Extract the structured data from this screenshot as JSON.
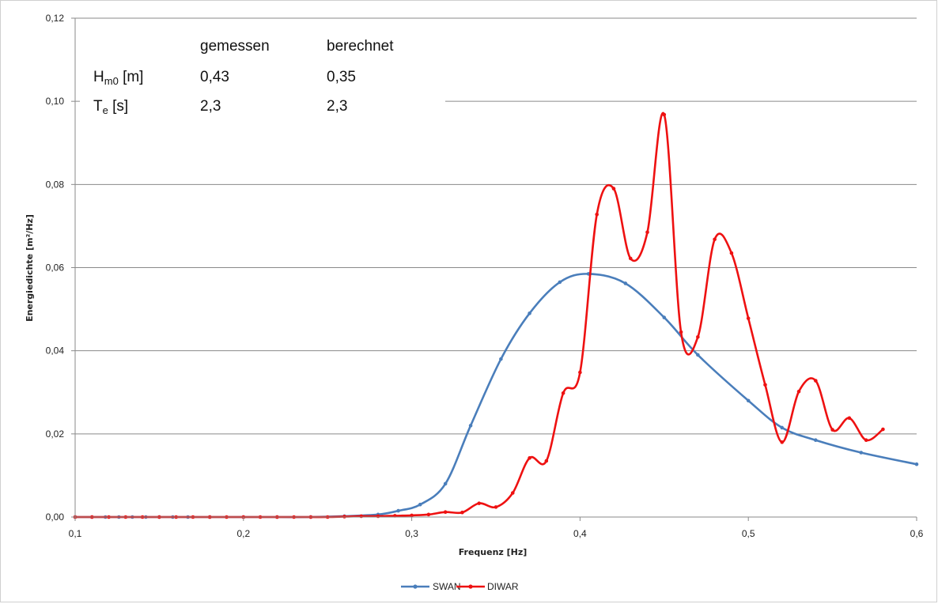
{
  "chart_data": {
    "type": "line",
    "title": "",
    "xlabel": "Frequenz [Hz]",
    "ylabel": "Energiedichte [m²/Hz]",
    "xlim": [
      0.1,
      0.6
    ],
    "ylim": [
      0,
      0.12
    ],
    "x_ticks": [
      "0,1",
      "0,2",
      "0,3",
      "0,4",
      "0,5",
      "0,6"
    ],
    "y_ticks": [
      "0,00",
      "0,02",
      "0,04",
      "0,06",
      "0,08",
      "0,10",
      "0,12"
    ],
    "grid": "horizontal",
    "legend_position": "bottom",
    "series": [
      {
        "name": "SWAN",
        "color": "#4a7ebb",
        "x": [
          0.1,
          0.11,
          0.118,
          0.126,
          0.134,
          0.142,
          0.15,
          0.158,
          0.167,
          0.18,
          0.2,
          0.22,
          0.24,
          0.26,
          0.28,
          0.292,
          0.305,
          0.32,
          0.335,
          0.353,
          0.37,
          0.388,
          0.405,
          0.427,
          0.45,
          0.47,
          0.5,
          0.52,
          0.54,
          0.567,
          0.6
        ],
        "y": [
          0,
          0,
          0,
          0,
          0,
          0,
          0,
          0,
          0,
          0,
          0,
          0,
          0,
          0.0002,
          0.0006,
          0.0015,
          0.003,
          0.008,
          0.022,
          0.038,
          0.049,
          0.0565,
          0.0585,
          0.0562,
          0.048,
          0.039,
          0.028,
          0.0215,
          0.0185,
          0.0155,
          0.0127
        ]
      },
      {
        "name": "DIWAR",
        "color": "#ee1111",
        "x": [
          0.1,
          0.11,
          0.12,
          0.13,
          0.14,
          0.15,
          0.16,
          0.17,
          0.18,
          0.19,
          0.2,
          0.21,
          0.22,
          0.23,
          0.24,
          0.25,
          0.26,
          0.27,
          0.28,
          0.29,
          0.3,
          0.31,
          0.32,
          0.33,
          0.34,
          0.35,
          0.36,
          0.37,
          0.38,
          0.39,
          0.4,
          0.41,
          0.42,
          0.43,
          0.44,
          0.45,
          0.46,
          0.47,
          0.48,
          0.49,
          0.5,
          0.51,
          0.52,
          0.53,
          0.54,
          0.55,
          0.56,
          0.57,
          0.58
        ],
        "y": [
          0,
          0,
          0,
          0,
          0,
          0,
          0,
          0,
          0,
          0,
          0,
          0,
          0,
          0,
          0,
          0,
          0.0001,
          0.0002,
          0.0002,
          0.0003,
          0.0004,
          0.0006,
          0.0012,
          0.0011,
          0.0033,
          0.0024,
          0.0058,
          0.0142,
          0.0135,
          0.0298,
          0.0348,
          0.0728,
          0.079,
          0.0622,
          0.0685,
          0.0968,
          0.0445,
          0.0433,
          0.0668,
          0.0635,
          0.0478,
          0.0318,
          0.018,
          0.0302,
          0.0328,
          0.021,
          0.0238,
          0.0185,
          0.0211
        ]
      }
    ],
    "annotation_table": {
      "headers": [
        "",
        "gemessen",
        "berechnet"
      ],
      "rows": [
        {
          "label_main": "H",
          "label_sub": "m0",
          "label_unit": " [m]",
          "gemessen": "0,43",
          "berechnet": "0,35"
        },
        {
          "label_main": "T",
          "label_sub": "e",
          "label_unit": " [s]",
          "gemessen": "2,3",
          "berechnet": "2,3"
        }
      ]
    }
  }
}
